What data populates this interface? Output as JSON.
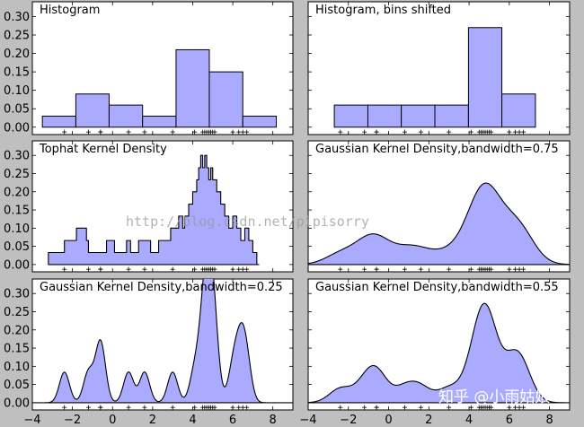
{
  "chart_data": [
    {
      "id": "p1",
      "type": "histogram",
      "title": "Histogram",
      "xlim": [
        -4,
        9
      ],
      "ylim": [
        -0.02,
        0.34
      ],
      "yticks": [
        0.0,
        0.05,
        0.1,
        0.15,
        0.2,
        0.25,
        0.3
      ],
      "ytick_labels": [
        "0.00",
        "0.05",
        "0.10",
        "0.15",
        "0.20",
        "0.25",
        "0.30"
      ],
      "xticks": [],
      "xtick_labels": [],
      "bins": [
        -3.5,
        -1.83,
        -0.17,
        1.5,
        3.17,
        4.83,
        6.5,
        8.17
      ],
      "values": [
        0.03,
        0.09,
        0.06,
        0.03,
        0.21,
        0.15,
        0.03
      ],
      "points": [
        -2.4,
        -1.2,
        -0.6,
        -0.6,
        0.8,
        1.6,
        3.0,
        4.1,
        4.5,
        4.6,
        4.7,
        4.8,
        4.9,
        5.0,
        5.1,
        6.0,
        6.3,
        6.5,
        6.7
      ]
    },
    {
      "id": "p2",
      "type": "histogram",
      "title": "Histogram, bins shifted",
      "xlim": [
        -4,
        9
      ],
      "ylim": [
        -0.02,
        0.34
      ],
      "yticks": [],
      "ytick_labels": [],
      "xticks": [],
      "xtick_labels": [],
      "bins": [
        -3.5,
        -2.7,
        -1.03,
        0.63,
        2.3,
        3.97,
        5.63,
        7.3
      ],
      "values": [
        0.0,
        0.06,
        0.06,
        0.06,
        0.06,
        0.27,
        0.09
      ],
      "points": [
        -2.4,
        -1.2,
        -0.6,
        -0.6,
        0.8,
        1.6,
        3.0,
        4.1,
        4.5,
        4.6,
        4.7,
        4.8,
        4.9,
        5.0,
        5.1,
        6.0,
        6.3,
        6.5,
        6.7
      ]
    },
    {
      "id": "p3",
      "type": "area",
      "title": "Tophat Kernel Density",
      "xlim": [
        -4,
        9
      ],
      "ylim": [
        -0.02,
        0.34
      ],
      "yticks": [
        0.0,
        0.05,
        0.1,
        0.15,
        0.2,
        0.25,
        0.3
      ],
      "ytick_labels": [
        "0.00",
        "0.05",
        "0.10",
        "0.15",
        "0.20",
        "0.25",
        "0.30"
      ],
      "xticks": [],
      "xtick_labels": [],
      "x": [
        -3.2,
        -3.2,
        -2.4,
        -2.4,
        -1.8,
        -1.8,
        -1.3,
        -1.3,
        -1.2,
        -1.2,
        -0.3,
        -0.3,
        0.1,
        0.1,
        0.7,
        0.7,
        0.9,
        0.9,
        1.3,
        1.3,
        1.9,
        1.9,
        2.3,
        2.3,
        2.9,
        2.9,
        3.3,
        3.3,
        3.5,
        3.5,
        3.6,
        3.6,
        3.8,
        3.8,
        4.0,
        4.0,
        4.2,
        4.2,
        4.3,
        4.3,
        4.4,
        4.4,
        4.5,
        4.5,
        4.6,
        4.6,
        4.7,
        4.7,
        4.8,
        4.8,
        4.9,
        4.9,
        5.0,
        5.0,
        5.2,
        5.2,
        5.4,
        5.4,
        5.6,
        5.6,
        5.8,
        5.8,
        6.0,
        6.0,
        6.2,
        6.2,
        6.4,
        6.4,
        6.6,
        6.6,
        6.8,
        6.8,
        7.0,
        7.0,
        7.2,
        7.2,
        7.3,
        7.3
      ],
      "y": [
        0,
        0.033,
        0.033,
        0.066,
        0.066,
        0.1,
        0.1,
        0.066,
        0.066,
        0.033,
        0.033,
        0.066,
        0.066,
        0.033,
        0.033,
        0.066,
        0.066,
        0.033,
        0.033,
        0.066,
        0.066,
        0.033,
        0.033,
        0.066,
        0.066,
        0.1,
        0.1,
        0.133,
        0.133,
        0.1,
        0.1,
        0.133,
        0.133,
        0.166,
        0.166,
        0.2,
        0.2,
        0.233,
        0.233,
        0.266,
        0.266,
        0.3,
        0.3,
        0.266,
        0.266,
        0.3,
        0.3,
        0.266,
        0.266,
        0.233,
        0.233,
        0.266,
        0.266,
        0.233,
        0.233,
        0.2,
        0.2,
        0.166,
        0.166,
        0.133,
        0.133,
        0.1,
        0.1,
        0.133,
        0.133,
        0.1,
        0.1,
        0.066,
        0.066,
        0.1,
        0.1,
        0.066,
        0.066,
        0.033,
        0.033,
        0.0,
        0.0,
        0
      ],
      "points": [
        -2.4,
        -1.2,
        -0.6,
        -0.6,
        0.8,
        1.6,
        3.0,
        4.1,
        4.5,
        4.6,
        4.7,
        4.8,
        4.9,
        5.0,
        5.1,
        6.0,
        6.3,
        6.5,
        6.7
      ]
    },
    {
      "id": "p4",
      "type": "area",
      "title": "Gaussian Kernel Density,bandwidth=0.75",
      "xlim": [
        -4,
        9
      ],
      "ylim": [
        -0.02,
        0.34
      ],
      "yticks": [],
      "ytick_labels": [],
      "xticks": [],
      "xtick_labels": [],
      "kernel": "gaussian",
      "bandwidth": 0.75,
      "points": [
        -2.4,
        -1.2,
        -0.6,
        -0.6,
        0.8,
        1.6,
        3.0,
        4.1,
        4.5,
        4.6,
        4.7,
        4.8,
        4.9,
        5.0,
        5.1,
        6.0,
        6.3,
        6.5,
        6.7
      ]
    },
    {
      "id": "p5",
      "type": "area",
      "title": "Gaussian Kernel Density,bandwidth=0.25",
      "xlim": [
        -4,
        9
      ],
      "ylim": [
        -0.02,
        0.34
      ],
      "yticks": [
        0.0,
        0.05,
        0.1,
        0.15,
        0.2,
        0.25,
        0.3
      ],
      "ytick_labels": [
        "0.00",
        "0.05",
        "0.10",
        "0.15",
        "0.20",
        "0.25",
        "0.30"
      ],
      "xticks": [
        -4,
        -2,
        0,
        2,
        4,
        6,
        8
      ],
      "xtick_labels": [
        "−4",
        "−2",
        "0",
        "2",
        "4",
        "6",
        "8"
      ],
      "kernel": "gaussian",
      "bandwidth": 0.25,
      "points": [
        -2.4,
        -1.2,
        -0.6,
        -0.6,
        0.8,
        1.6,
        3.0,
        4.1,
        4.5,
        4.6,
        4.7,
        4.8,
        4.9,
        5.0,
        5.1,
        6.0,
        6.3,
        6.5,
        6.7
      ]
    },
    {
      "id": "p6",
      "type": "area",
      "title": "Gaussian Kernel Density,bandwidth=0.55",
      "xlim": [
        -4,
        9
      ],
      "ylim": [
        -0.02,
        0.34
      ],
      "yticks": [],
      "ytick_labels": [],
      "xticks": [
        -4,
        -2,
        0,
        2,
        4,
        6,
        8
      ],
      "xtick_labels": [
        "−4",
        "−2",
        "0",
        "2",
        "4",
        "6",
        "8"
      ],
      "kernel": "gaussian",
      "bandwidth": 0.55,
      "points": [
        -2.4,
        -1.2,
        -0.6,
        -0.6,
        0.8,
        1.6,
        3.0,
        4.1,
        4.5,
        4.6,
        4.7,
        4.8,
        4.9,
        5.0,
        5.1,
        6.0,
        6.3,
        6.5,
        6.7
      ]
    }
  ],
  "watermark": {
    "url": "http://blog.csdn.net/pipisorry",
    "credit": "知乎 @小雨姑娘"
  },
  "colors": {
    "fill": "#aaaaff",
    "background": "#bfbfbf"
  }
}
